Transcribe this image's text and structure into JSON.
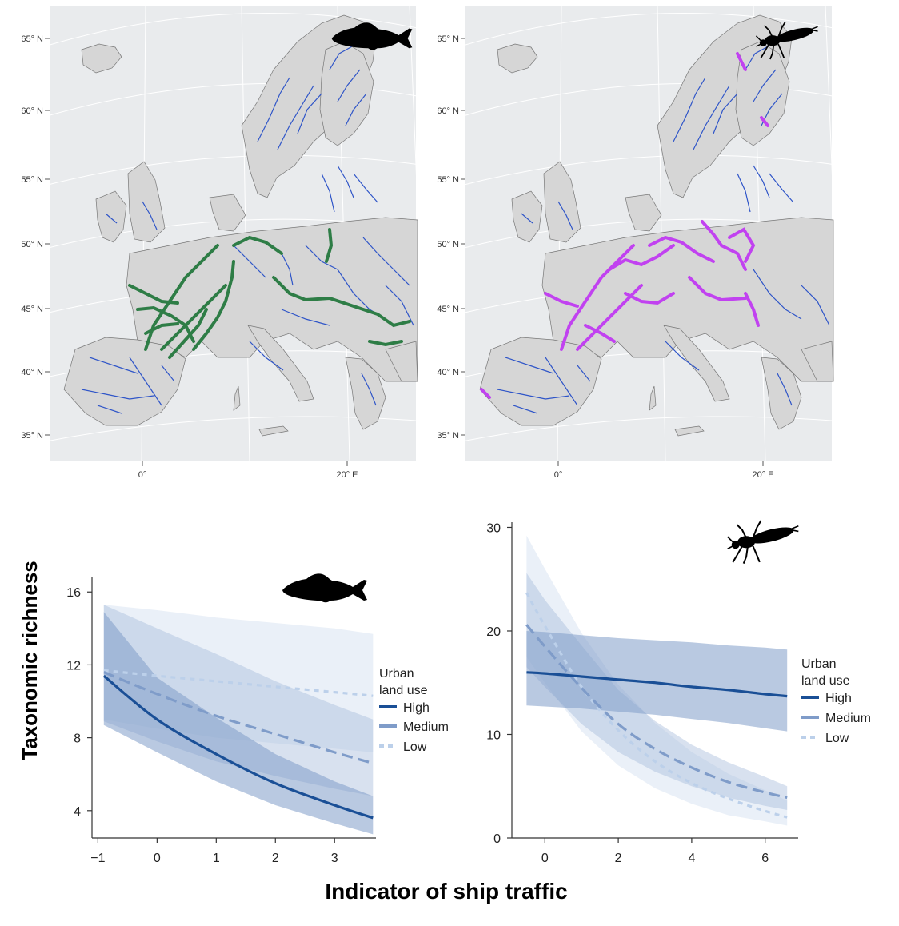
{
  "colors": {
    "map_background": "#e9ebed",
    "land": "#d6d6d6",
    "river": "#2f55c8",
    "highlight_fish": "#2e7d46",
    "highlight_invertebrate": "#c142f0",
    "high": "#1a4f96",
    "medium": "#7f9cc9",
    "low": "#bcd0ea"
  },
  "icons": [
    "fish-silhouette-icon",
    "insect-larva-silhouette-icon"
  ],
  "maps": [
    {
      "taxon_icon": "fish-silhouette-icon",
      "lat_labels": [
        "65° N",
        "60° N",
        "55° N",
        "50° N",
        "45° N",
        "40° N",
        "35° N"
      ],
      "lon_labels": [
        "0°",
        "20° E"
      ]
    },
    {
      "taxon_icon": "insect-larva-silhouette-icon",
      "lat_labels": [
        "65° N",
        "60° N",
        "55° N",
        "50° N",
        "45° N",
        "40° N",
        "35° N"
      ],
      "lon_labels": [
        "0°",
        "20° E"
      ]
    }
  ],
  "shared_labels": {
    "ylabel": "Taxonomic richness",
    "xlabel": "Indicator of ship traffic"
  },
  "chart_data": [
    {
      "type": "line",
      "taxon_icon": "fish-silhouette-icon",
      "xlim": [
        -1.1,
        3.7
      ],
      "ylim": [
        2.5,
        16.8
      ],
      "xticks": [
        -1,
        0,
        1,
        2,
        3
      ],
      "yticks": [
        4,
        8,
        12,
        16
      ],
      "legend_title": [
        "Urban",
        "land use"
      ],
      "series": [
        {
          "name": "High",
          "style": "solid",
          "x": [
            -0.9,
            0,
            1,
            2,
            3,
            3.65
          ],
          "y": [
            11.4,
            9.0,
            7.1,
            5.5,
            4.3,
            3.6
          ],
          "lower": [
            8.7,
            7.2,
            5.6,
            4.3,
            3.3,
            2.7
          ],
          "upper": [
            14.9,
            11.3,
            9.1,
            7.1,
            5.6,
            4.8
          ]
        },
        {
          "name": "Medium",
          "style": "dashed",
          "x": [
            -0.9,
            0,
            1,
            2,
            3,
            3.65
          ],
          "y": [
            11.6,
            10.4,
            9.2,
            8.2,
            7.2,
            6.6
          ],
          "lower": [
            8.9,
            7.8,
            6.7,
            5.9,
            5.2,
            4.8
          ],
          "upper": [
            15.3,
            14.0,
            12.6,
            11.1,
            9.8,
            9.0
          ]
        },
        {
          "name": "Low",
          "style": "dotted",
          "x": [
            -0.9,
            0,
            1,
            2,
            3,
            3.65
          ],
          "y": [
            11.7,
            11.4,
            11.1,
            10.8,
            10.5,
            10.3
          ],
          "lower": [
            9.0,
            8.5,
            8.0,
            7.7,
            7.4,
            7.2
          ],
          "upper": [
            15.3,
            15.0,
            14.6,
            14.3,
            14.0,
            13.7
          ]
        }
      ]
    },
    {
      "type": "line",
      "taxon_icon": "insect-larva-silhouette-icon",
      "xlim": [
        -0.9,
        6.9
      ],
      "ylim": [
        0,
        30.5
      ],
      "xticks": [
        0,
        2,
        4,
        6
      ],
      "yticks": [
        0,
        10,
        20,
        30
      ],
      "legend_title": [
        "Urban",
        "land use"
      ],
      "series": [
        {
          "name": "High",
          "style": "solid",
          "x": [
            -0.5,
            0,
            1,
            2,
            3,
            4,
            5,
            6,
            6.6
          ],
          "y": [
            16.0,
            15.9,
            15.6,
            15.3,
            15.0,
            14.6,
            14.3,
            13.9,
            13.7
          ],
          "lower": [
            12.8,
            12.7,
            12.5,
            12.2,
            11.9,
            11.5,
            11.1,
            10.6,
            10.3
          ],
          "upper": [
            20.0,
            19.9,
            19.6,
            19.3,
            19.1,
            18.9,
            18.6,
            18.4,
            18.2
          ]
        },
        {
          "name": "Medium",
          "style": "dashed",
          "x": [
            -0.5,
            0,
            1,
            2,
            3,
            4,
            5,
            6,
            6.6
          ],
          "y": [
            20.6,
            18.5,
            14.5,
            11.0,
            8.6,
            6.8,
            5.4,
            4.4,
            3.9
          ],
          "lower": [
            16.5,
            14.6,
            11.0,
            8.3,
            6.4,
            5.0,
            3.9,
            3.1,
            2.7
          ],
          "upper": [
            25.6,
            23.0,
            18.6,
            14.3,
            11.3,
            9.0,
            7.3,
            5.9,
            5.0
          ]
        },
        {
          "name": "Low",
          "style": "dotted",
          "x": [
            -0.5,
            0,
            1,
            2,
            3,
            4,
            5,
            6,
            6.6
          ],
          "y": [
            23.7,
            20.5,
            14.6,
            10.4,
            7.4,
            5.3,
            3.8,
            2.6,
            2.0
          ],
          "lower": [
            17.5,
            15.0,
            10.3,
            7.0,
            4.8,
            3.3,
            2.2,
            1.6,
            1.2
          ],
          "upper": [
            29.2,
            26.0,
            19.8,
            14.8,
            11.1,
            8.3,
            6.2,
            4.6,
            3.6
          ]
        }
      ]
    }
  ]
}
